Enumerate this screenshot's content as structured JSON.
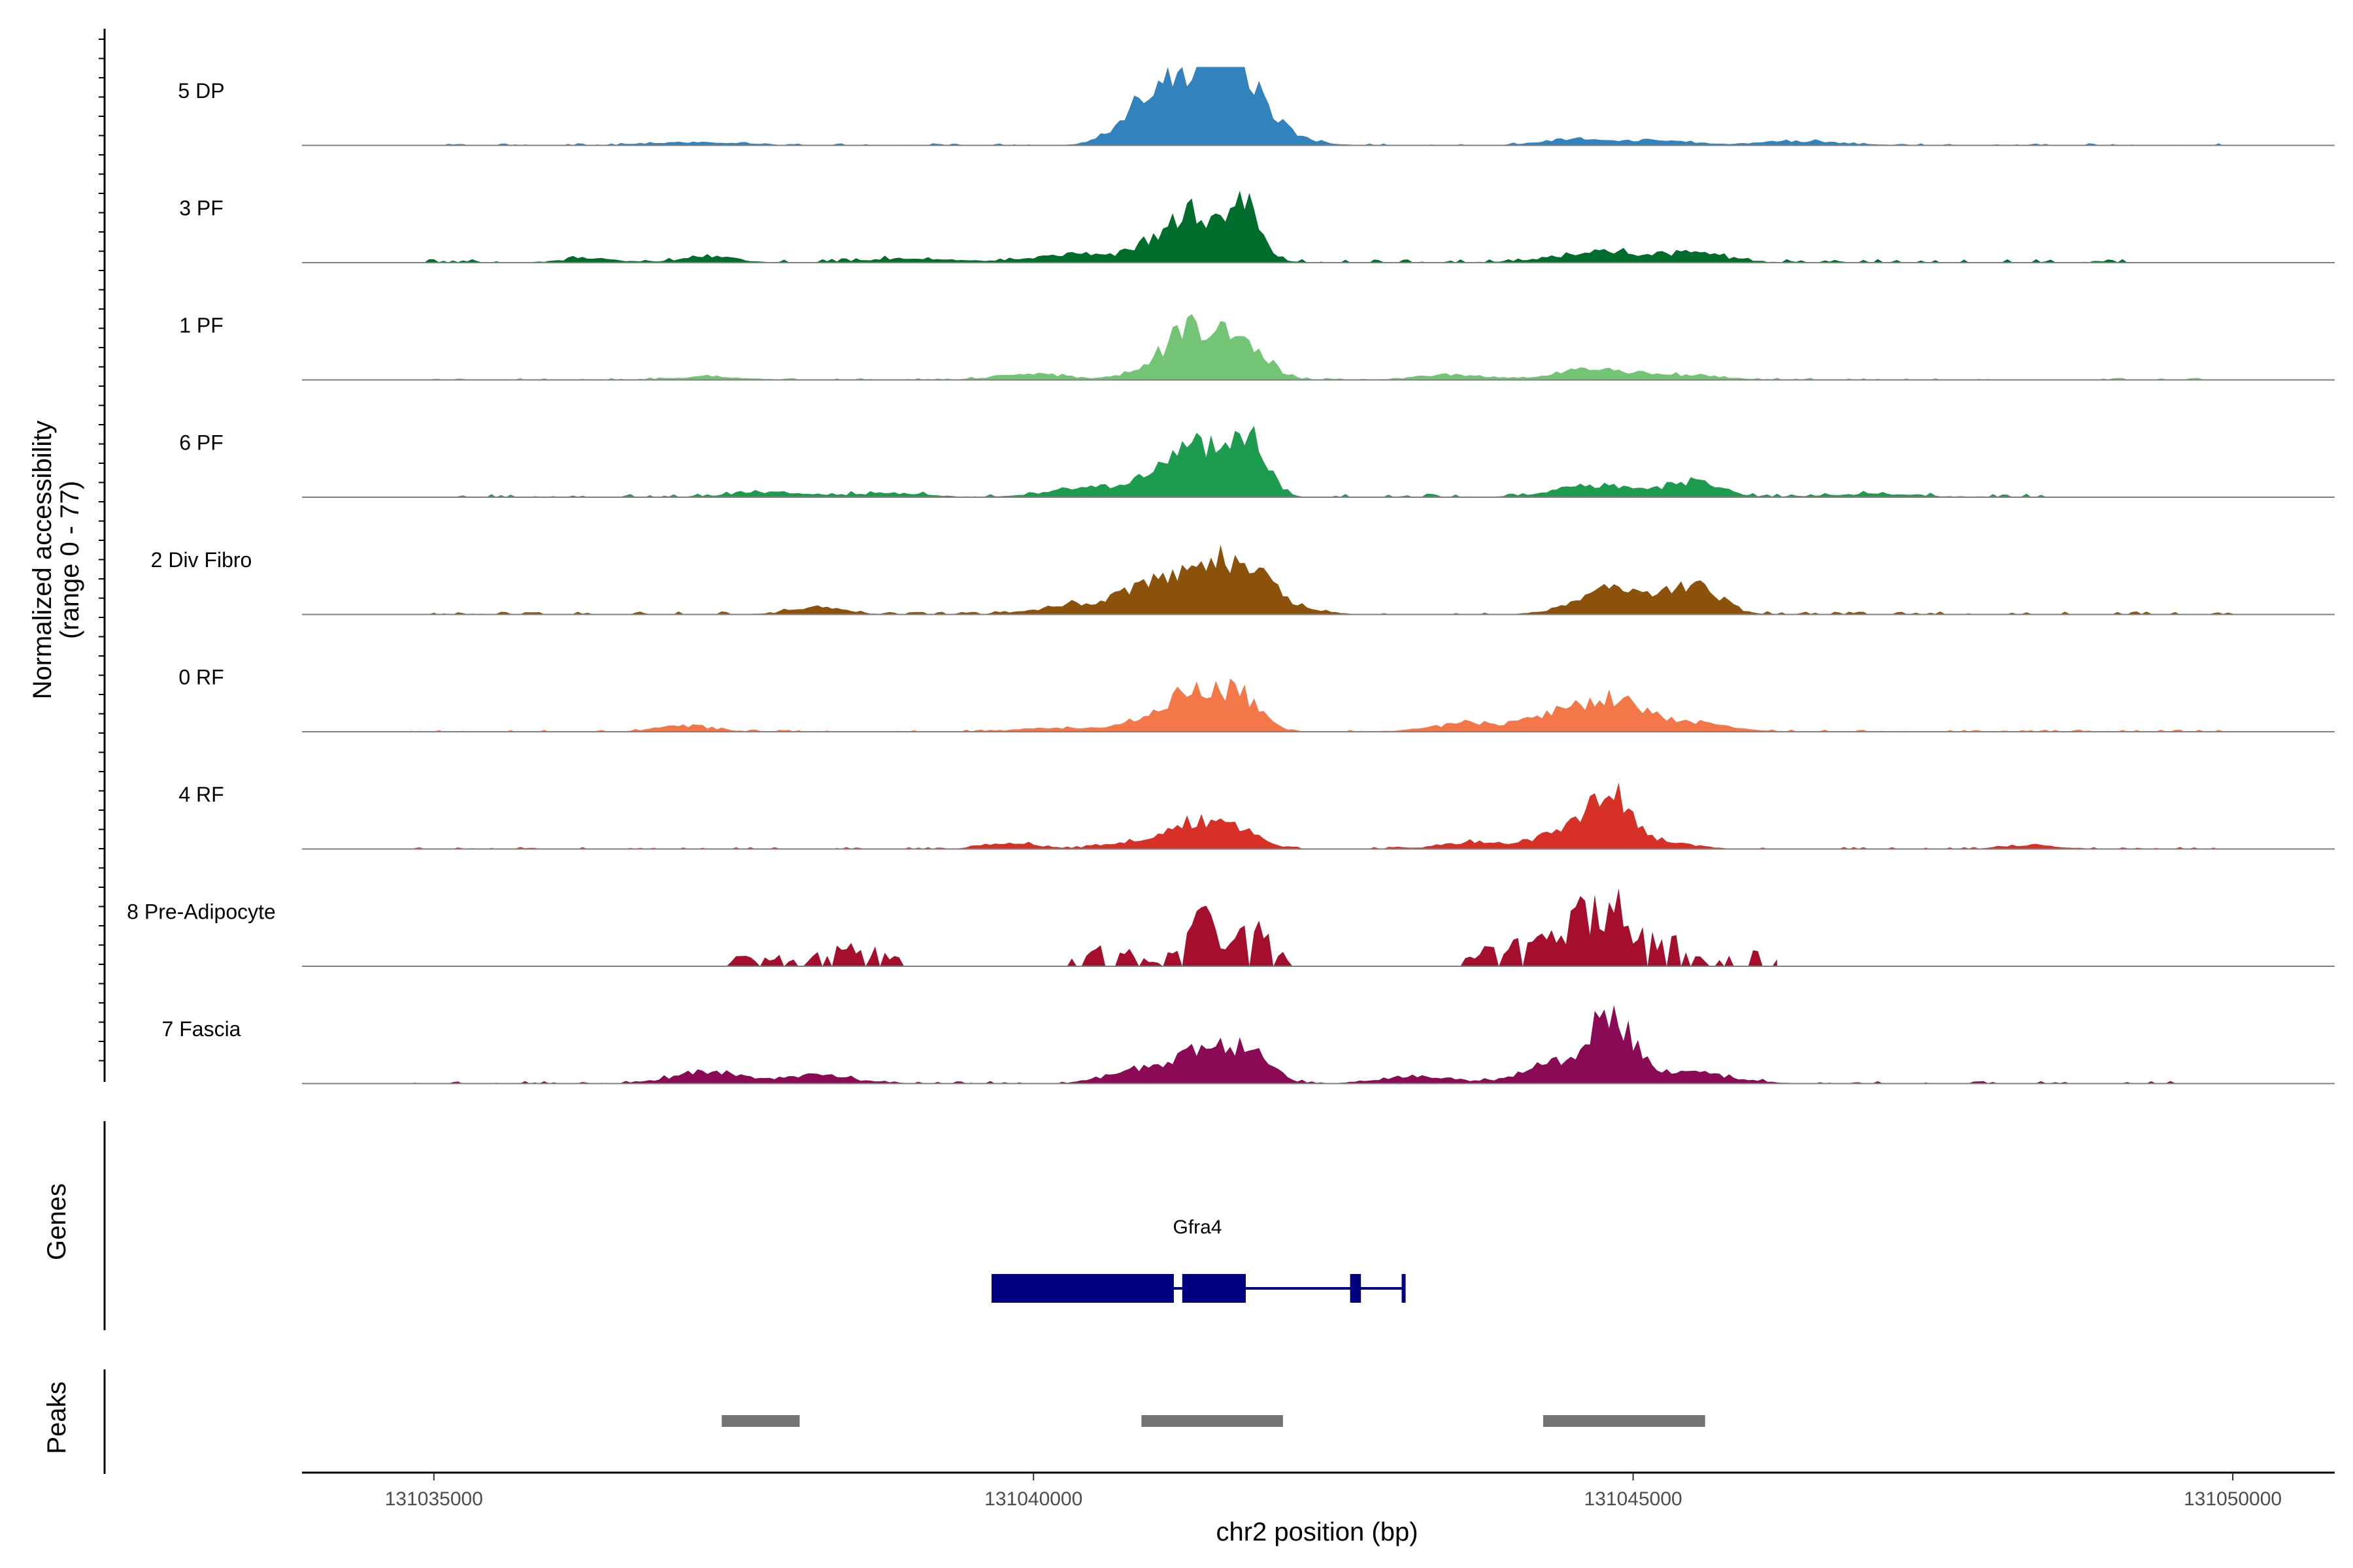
{
  "chart_data": {
    "type": "area",
    "title": "",
    "xlabel": "chr2 position (bp)",
    "ylabel": "Normalized accessibility",
    "ylabel_range": "(range 0 - 77)",
    "ylim": [
      0,
      77
    ],
    "xlim": [
      131033900,
      131050850
    ],
    "x_ticks": [
      131035000,
      131040000,
      131045000,
      131050000
    ],
    "x_tick_labels": [
      "131035000",
      "131040000",
      "131045000",
      "131050000"
    ],
    "tracks": [
      {
        "name": "5 DP",
        "color": "#3182bd",
        "peaks": [
          [
            131041400,
            50,
            500
          ],
          [
            131041700,
            54,
            300
          ],
          [
            131041100,
            35,
            300
          ],
          [
            131040800,
            12,
            250
          ],
          [
            131044500,
            7,
            350
          ],
          [
            131045200,
            5,
            400
          ],
          [
            131046400,
            4,
            500
          ],
          [
            131042200,
            4,
            300
          ],
          [
            131037200,
            3,
            500
          ]
        ],
        "noise": 2.0,
        "start": 131034800,
        "end": 131050000
      },
      {
        "name": "3 PF",
        "color": "#006d2c",
        "peaks": [
          [
            131041350,
            45,
            250
          ],
          [
            131041750,
            60,
            200
          ],
          [
            131041000,
            18,
            300
          ],
          [
            131040300,
            8,
            400
          ],
          [
            131044700,
            10,
            500
          ],
          [
            131045500,
            9,
            400
          ],
          [
            131039000,
            4,
            500
          ],
          [
            131037300,
            6,
            300
          ],
          [
            131036300,
            4,
            300
          ]
        ],
        "noise": 3.5,
        "start": 131034800,
        "end": 131049300
      },
      {
        "name": "1 PF",
        "color": "#74c476",
        "peaks": [
          [
            131041300,
            45,
            250
          ],
          [
            131041700,
            40,
            300
          ],
          [
            131041000,
            12,
            300
          ],
          [
            131040000,
            6,
            400
          ],
          [
            131044700,
            10,
            450
          ],
          [
            131043500,
            5,
            400
          ],
          [
            131045500,
            4,
            400
          ],
          [
            131037300,
            3,
            400
          ]
        ],
        "noise": 2.0,
        "start": 131034800,
        "end": 131050000
      },
      {
        "name": "6 PF",
        "color": "#1d9b4f",
        "peaks": [
          [
            131041400,
            48,
            300
          ],
          [
            131041800,
            58,
            200
          ],
          [
            131041000,
            20,
            300
          ],
          [
            131040400,
            8,
            400
          ],
          [
            131044700,
            12,
            450
          ],
          [
            131045500,
            15,
            300
          ],
          [
            131037800,
            5,
            400
          ],
          [
            131038800,
            4,
            400
          ],
          [
            131047000,
            3,
            500
          ]
        ],
        "noise": 3.5,
        "start": 131034800,
        "end": 131049100
      },
      {
        "name": "2 Div Fibro",
        "color": "#8c510a",
        "peaks": [
          [
            131041400,
            45,
            350
          ],
          [
            131041800,
            35,
            300
          ],
          [
            131040900,
            22,
            350
          ],
          [
            131040300,
            8,
            400
          ],
          [
            131044800,
            22,
            400
          ],
          [
            131045300,
            14,
            350
          ],
          [
            131045600,
            18,
            250
          ],
          [
            131038200,
            7,
            300
          ],
          [
            131042200,
            5,
            300
          ]
        ],
        "noise": 3.0,
        "start": 131034800,
        "end": 131050000
      },
      {
        "name": "0 RF",
        "color": "#f4774a",
        "peaks": [
          [
            131041300,
            35,
            250
          ],
          [
            131041700,
            38,
            250
          ],
          [
            131041000,
            12,
            350
          ],
          [
            131044800,
            30,
            350
          ],
          [
            131044300,
            13,
            350
          ],
          [
            131043600,
            8,
            400
          ],
          [
            131045400,
            10,
            450
          ],
          [
            131037100,
            6,
            300
          ],
          [
            131040200,
            4,
            400
          ]
        ],
        "noise": 2.0,
        "start": 131034800,
        "end": 131050000
      },
      {
        "name": "4 RF",
        "color": "#d73027",
        "peaks": [
          [
            131044800,
            55,
            250
          ],
          [
            131044400,
            15,
            300
          ],
          [
            131041300,
            25,
            250
          ],
          [
            131041700,
            20,
            250
          ],
          [
            131040800,
            7,
            300
          ],
          [
            131043700,
            7,
            400
          ],
          [
            131045300,
            6,
            300
          ],
          [
            131039800,
            6,
            300
          ],
          [
            131048300,
            4,
            300
          ]
        ],
        "noise": 2.0,
        "start": 131034800,
        "end": 131050000
      },
      {
        "name": "8 Pre-Adipocyte",
        "color": "#a50f2d",
        "peaks": [
          [
            131041400,
            55,
            200
          ],
          [
            131041850,
            38,
            200
          ],
          [
            131040600,
            20,
            350
          ],
          [
            131044800,
            60,
            300
          ],
          [
            131044400,
            25,
            300
          ],
          [
            131043900,
            18,
            300
          ],
          [
            131045300,
            22,
            250
          ],
          [
            131046000,
            18,
            250
          ],
          [
            131038500,
            18,
            400
          ],
          [
            131037700,
            10,
            350
          ]
        ],
        "noise": 0.0,
        "start": 131034800,
        "end": 131046200,
        "sparse": true
      },
      {
        "name": "7 Fascia",
        "color": "#8a0a56",
        "peaks": [
          [
            131044800,
            68,
            250
          ],
          [
            131044300,
            18,
            350
          ],
          [
            131041400,
            35,
            250
          ],
          [
            131041800,
            32,
            250
          ],
          [
            131040900,
            15,
            350
          ],
          [
            131037300,
            12,
            400
          ],
          [
            131038200,
            8,
            400
          ],
          [
            131045400,
            12,
            500
          ],
          [
            131043200,
            8,
            400
          ]
        ],
        "noise": 2.5,
        "start": 131034800,
        "end": 131049600
      }
    ],
    "genes_label": "Genes",
    "gene": {
      "name": "Gfra4",
      "color": "#000080",
      "start": 131039650,
      "end": 131043100,
      "exons": [
        [
          131039650,
          131041170
        ],
        [
          131041240,
          131041770
        ],
        [
          131042640,
          131042730
        ],
        [
          131043070,
          131043100
        ]
      ]
    },
    "peaks_label": "Peaks",
    "peak_regions": [
      [
        131037400,
        131038050
      ],
      [
        131040900,
        131042080
      ],
      [
        131044250,
        131045600
      ]
    ],
    "peak_color": "#737373"
  }
}
